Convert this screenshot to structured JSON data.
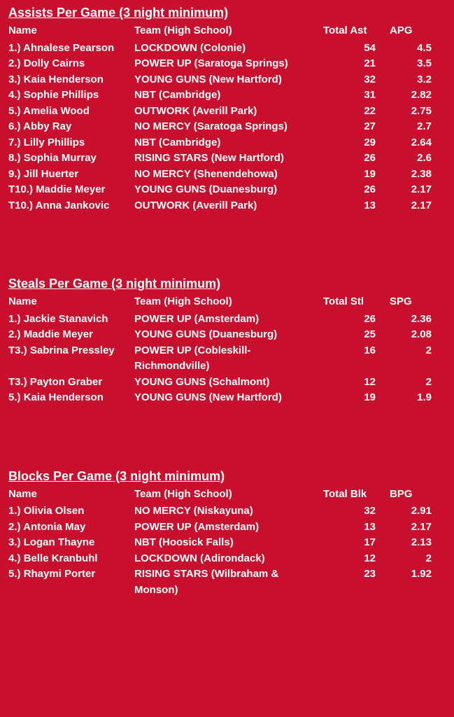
{
  "sections": [
    {
      "title": "Assists Per Game (3 night minimum)",
      "headers": {
        "name": "Name",
        "team": "Team (High School)",
        "total": "Total Ast",
        "avg": "APG"
      },
      "rows": [
        {
          "rank": "1.)",
          "name": "Ahnalese Pearson",
          "team": "LOCKDOWN (Colonie)",
          "total": "54",
          "avg": "4.5"
        },
        {
          "rank": "2.)",
          "name": "Dolly Cairns",
          "team": "POWER UP (Saratoga Springs)",
          "total": "21",
          "avg": "3.5"
        },
        {
          "rank": "3.)",
          "name": "Kaia Henderson",
          "team": "YOUNG GUNS (New Hartford)",
          "total": "32",
          "avg": "3.2"
        },
        {
          "rank": "4.)",
          "name": "Sophie Phillips",
          "team": "NBT (Cambridge)",
          "total": "31",
          "avg": "2.82"
        },
        {
          "rank": "5.)",
          "name": "Amelia Wood",
          "team": "OUTWORK (Averill Park)",
          "total": "22",
          "avg": "2.75"
        },
        {
          "rank": "6.)",
          "name": "Abby Ray",
          "team": "NO MERCY (Saratoga Springs)",
          "total": "27",
          "avg": "2.7"
        },
        {
          "rank": "7.)",
          "name": "Lilly Phillips",
          "team": "NBT (Cambridge)",
          "total": "29",
          "avg": "2.64"
        },
        {
          "rank": "8.)",
          "name": "Sophia Murray",
          "team": "RISING STARS (New Hartford)",
          "total": "26",
          "avg": "2.6"
        },
        {
          "rank": "9.)",
          "name": "Jill Huerter",
          "team": "NO MERCY (Shenendehowa)",
          "total": "19",
          "avg": "2.38"
        },
        {
          "rank": "T10.)",
          "name": "Maddie Meyer",
          "team": "YOUNG GUNS (Duanesburg)",
          "total": "26",
          "avg": "2.17"
        },
        {
          "rank": "T10.)",
          "name": "Anna Jankovic",
          "team": "OUTWORK (Averill Park)",
          "total": "13",
          "avg": "2.17"
        }
      ]
    },
    {
      "title": "Steals Per Game (3 night minimum)",
      "headers": {
        "name": "Name",
        "team": "Team (High School)",
        "total": "Total Stl",
        "avg": "SPG"
      },
      "rows": [
        {
          "rank": "1.)",
          "name": "Jackie Stanavich",
          "team": "POWER UP (Amsterdam)",
          "total": "26",
          "avg": "2.36"
        },
        {
          "rank": "2.)",
          "name": "Maddie Meyer",
          "team": "YOUNG GUNS (Duanesburg)",
          "total": "25",
          "avg": "2.08"
        },
        {
          "rank": "T3.)",
          "name": "Sabrina Pressley",
          "team": "POWER UP (Cobleskill-Richmondville)",
          "total": "16",
          "avg": "2"
        },
        {
          "rank": "T3.)",
          "name": "Payton Graber",
          "team": "YOUNG GUNS (Schalmont)",
          "total": "12",
          "avg": "2"
        },
        {
          "rank": "5.)",
          "name": "Kaia Henderson",
          "team": "YOUNG GUNS (New Hartford)",
          "total": "19",
          "avg": "1.9"
        }
      ]
    },
    {
      "title": "Blocks Per Game (3 night minimum)",
      "headers": {
        "name": "Name",
        "team": "Team (High School)",
        "total": "Total Blk",
        "avg": "BPG"
      },
      "rows": [
        {
          "rank": "1.)",
          "name": "Olivia Olsen",
          "team": "NO MERCY (Niskayuna)",
          "total": "32",
          "avg": "2.91"
        },
        {
          "rank": "2.)",
          "name": "Antonia May",
          "team": "POWER UP (Amsterdam)",
          "total": "13",
          "avg": "2.17"
        },
        {
          "rank": "3.)",
          "name": "Logan Thayne",
          "team": "NBT (Hoosick Falls)",
          "total": "17",
          "avg": "2.13"
        },
        {
          "rank": "4.)",
          "name": "Belle Kranbuhl",
          "team": "LOCKDOWN (Adirondack)",
          "total": "12",
          "avg": "2"
        },
        {
          "rank": "5.)",
          "name": "Rhaymi Porter",
          "team": "RISING STARS (Wilbraham & Monson)",
          "total": "23",
          "avg": "1.92"
        }
      ]
    }
  ]
}
